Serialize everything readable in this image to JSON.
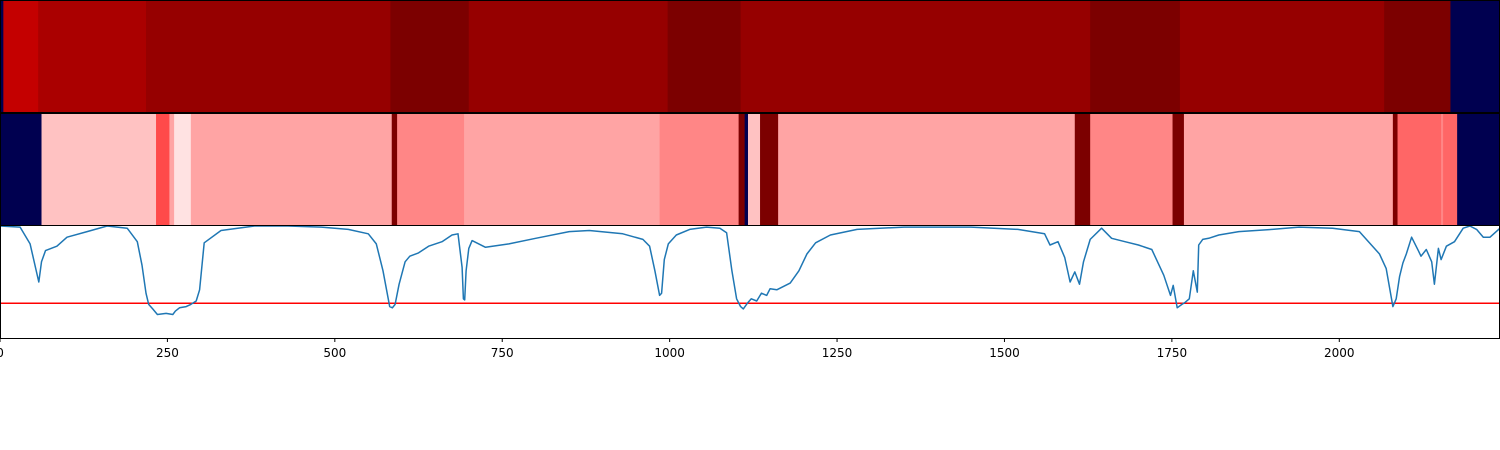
{
  "chart_data": [
    {
      "type": "heatmap",
      "name": "segment-strip-top",
      "x_range": [
        0,
        2240
      ],
      "colors": {
        "fill_outside": "#000050"
      },
      "segments": [
        {
          "start": 0,
          "end": 5,
          "color": "#000050"
        },
        {
          "start": 5,
          "end": 57,
          "color": "#c40000"
        },
        {
          "start": 57,
          "end": 218,
          "color": "#aa0000"
        },
        {
          "start": 218,
          "end": 583,
          "color": "#960000"
        },
        {
          "start": 583,
          "end": 700,
          "color": "#7c0000"
        },
        {
          "start": 700,
          "end": 997,
          "color": "#960000"
        },
        {
          "start": 997,
          "end": 1106,
          "color": "#7c0000"
        },
        {
          "start": 1106,
          "end": 1628,
          "color": "#960000"
        },
        {
          "start": 1628,
          "end": 1762,
          "color": "#7c0000"
        },
        {
          "start": 1762,
          "end": 2067,
          "color": "#960000"
        },
        {
          "start": 2067,
          "end": 2166,
          "color": "#7c0000"
        },
        {
          "start": 2166,
          "end": 2240,
          "color": "#000050"
        }
      ]
    },
    {
      "type": "heatmap",
      "name": "segment-strip-middle",
      "x_range": [
        0,
        2240
      ],
      "segments": [
        {
          "start": 0,
          "end": 62,
          "color": "#000050"
        },
        {
          "start": 62,
          "end": 233,
          "color": "#ffc2c2"
        },
        {
          "start": 233,
          "end": 253,
          "color": "#ff4a4a"
        },
        {
          "start": 253,
          "end": 260,
          "color": "#ffa4a4"
        },
        {
          "start": 260,
          "end": 285,
          "color": "#ffe2e2"
        },
        {
          "start": 285,
          "end": 585,
          "color": "#ffa4a4"
        },
        {
          "start": 585,
          "end": 593,
          "color": "#7c0000"
        },
        {
          "start": 593,
          "end": 693,
          "color": "#ff8686"
        },
        {
          "start": 693,
          "end": 985,
          "color": "#ffa4a4"
        },
        {
          "start": 985,
          "end": 1103,
          "color": "#ff8686"
        },
        {
          "start": 1103,
          "end": 1112,
          "color": "#7c0000"
        },
        {
          "start": 1112,
          "end": 1117,
          "color": "#000050"
        },
        {
          "start": 1117,
          "end": 1135,
          "color": "#ffc2c2"
        },
        {
          "start": 1135,
          "end": 1162,
          "color": "#7c0000"
        },
        {
          "start": 1162,
          "end": 1605,
          "color": "#ffa4a4"
        },
        {
          "start": 1605,
          "end": 1628,
          "color": "#7c0000"
        },
        {
          "start": 1628,
          "end": 1751,
          "color": "#ff8686"
        },
        {
          "start": 1751,
          "end": 1768,
          "color": "#7c0000"
        },
        {
          "start": 1768,
          "end": 2080,
          "color": "#ffa4a4"
        },
        {
          "start": 2080,
          "end": 2087,
          "color": "#7c0000"
        },
        {
          "start": 2087,
          "end": 2152,
          "color": "#ff6666"
        },
        {
          "start": 2152,
          "end": 2155,
          "color": "#ff8686"
        },
        {
          "start": 2155,
          "end": 2176,
          "color": "#ff6666"
        },
        {
          "start": 2176,
          "end": 2240,
          "color": "#000050"
        }
      ]
    },
    {
      "type": "line",
      "name": "signal-trace",
      "x_range": [
        0,
        2240
      ],
      "ylim": [
        0,
        1
      ],
      "xticks": [
        0,
        250,
        500,
        750,
        1000,
        1250,
        1500,
        1750,
        2000
      ],
      "xtick_labels": [
        "0",
        "250",
        "500",
        "750",
        "1000",
        "1250",
        "1500",
        "1750",
        "2000"
      ],
      "threshold": 0.31,
      "colors": {
        "line": "#1f77b4",
        "threshold": "#ff0000",
        "spine": "#000000"
      },
      "x": [
        0,
        30,
        45,
        58,
        62,
        68,
        85,
        100,
        130,
        160,
        190,
        205,
        212,
        218,
        222,
        228,
        235,
        248,
        258,
        262,
        268,
        278,
        285,
        293,
        298,
        305,
        330,
        380,
        430,
        480,
        520,
        550,
        562,
        572,
        582,
        586,
        590,
        596,
        605,
        612,
        625,
        640,
        660,
        675,
        684,
        690,
        692,
        694,
        696,
        700,
        705,
        725,
        760,
        800,
        850,
        880,
        930,
        960,
        970,
        978,
        985,
        988,
        992,
        998,
        1010,
        1030,
        1055,
        1075,
        1085,
        1093,
        1100,
        1106,
        1110,
        1116,
        1122,
        1130,
        1137,
        1145,
        1150,
        1160,
        1180,
        1193,
        1205,
        1218,
        1240,
        1280,
        1350,
        1450,
        1520,
        1560,
        1568,
        1580,
        1590,
        1598,
        1605,
        1612,
        1618,
        1628,
        1645,
        1660,
        1680,
        1700,
        1720,
        1738,
        1748,
        1752,
        1758,
        1765,
        1770,
        1776,
        1782,
        1788,
        1790,
        1796,
        1805,
        1820,
        1850,
        1900,
        1940,
        1990,
        2030,
        2060,
        2070,
        2080,
        2085,
        2090,
        2095,
        2100,
        2108,
        2118,
        2122,
        2130,
        2138,
        2142,
        2148,
        2152,
        2160,
        2172,
        2185,
        2195,
        2205,
        2215,
        2225,
        2240
      ],
      "y": [
        1.0,
        0.99,
        0.84,
        0.5,
        0.68,
        0.78,
        0.82,
        0.9,
        0.95,
        1.0,
        0.98,
        0.86,
        0.65,
        0.4,
        0.3,
        0.26,
        0.21,
        0.22,
        0.21,
        0.24,
        0.27,
        0.28,
        0.3,
        0.33,
        0.43,
        0.85,
        0.96,
        1.0,
        1.0,
        0.99,
        0.97,
        0.93,
        0.84,
        0.6,
        0.28,
        0.27,
        0.3,
        0.48,
        0.68,
        0.73,
        0.76,
        0.82,
        0.86,
        0.92,
        0.93,
        0.63,
        0.35,
        0.34,
        0.6,
        0.8,
        0.87,
        0.81,
        0.84,
        0.89,
        0.95,
        0.96,
        0.93,
        0.88,
        0.82,
        0.6,
        0.38,
        0.4,
        0.7,
        0.84,
        0.92,
        0.97,
        0.99,
        0.98,
        0.94,
        0.6,
        0.35,
        0.28,
        0.26,
        0.31,
        0.35,
        0.33,
        0.4,
        0.38,
        0.44,
        0.43,
        0.49,
        0.6,
        0.75,
        0.85,
        0.92,
        0.97,
        0.99,
        0.99,
        0.97,
        0.93,
        0.83,
        0.86,
        0.72,
        0.5,
        0.59,
        0.48,
        0.68,
        0.88,
        0.98,
        0.89,
        0.86,
        0.83,
        0.79,
        0.56,
        0.38,
        0.47,
        0.27,
        0.3,
        0.32,
        0.35,
        0.6,
        0.41,
        0.83,
        0.88,
        0.89,
        0.92,
        0.95,
        0.97,
        0.99,
        0.98,
        0.95,
        0.75,
        0.62,
        0.28,
        0.35,
        0.55,
        0.67,
        0.75,
        0.9,
        0.78,
        0.73,
        0.79,
        0.68,
        0.48,
        0.8,
        0.7,
        0.82,
        0.86,
        0.98,
        1.0,
        0.97,
        0.9,
        0.9,
        0.98
      ]
    }
  ]
}
